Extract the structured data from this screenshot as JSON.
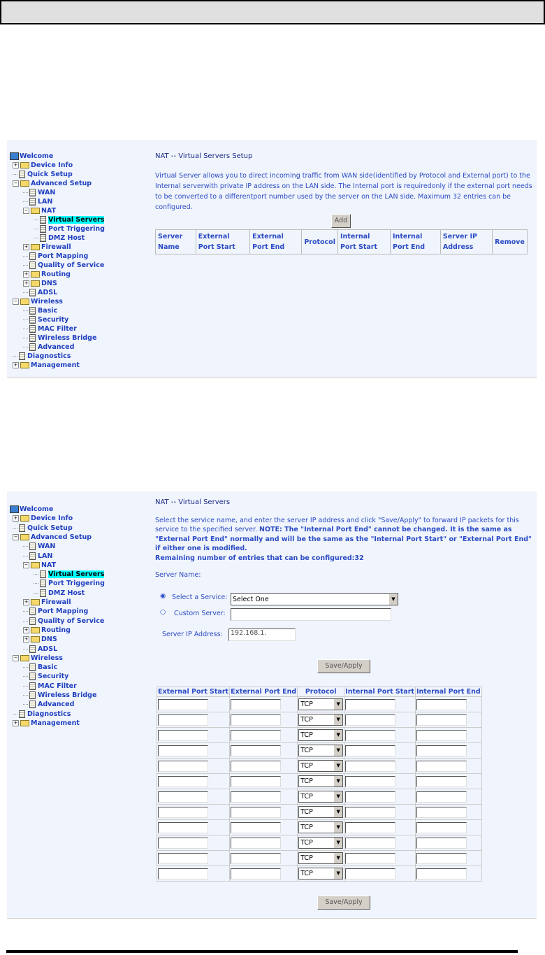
{
  "tree": [
    {
      "label": "Welcome",
      "level": 0,
      "icon": "computer",
      "exp": ""
    },
    {
      "label": "Device Info",
      "level": 1,
      "icon": "folder",
      "exp": "+"
    },
    {
      "label": "Quick Setup",
      "level": 1,
      "icon": "page",
      "exp": ""
    },
    {
      "label": "Advanced Setup",
      "level": 1,
      "icon": "folder-open",
      "exp": "-"
    },
    {
      "label": "WAN",
      "level": 2,
      "icon": "page",
      "exp": ""
    },
    {
      "label": "LAN",
      "level": 2,
      "icon": "page",
      "exp": ""
    },
    {
      "label": "NAT",
      "level": 2,
      "icon": "folder-open",
      "exp": "-"
    },
    {
      "label": "Virtual Servers",
      "level": 3,
      "icon": "page",
      "exp": "",
      "selected": true
    },
    {
      "label": "Port Triggering",
      "level": 3,
      "icon": "page",
      "exp": ""
    },
    {
      "label": "DMZ Host",
      "level": 3,
      "icon": "page",
      "exp": ""
    },
    {
      "label": "Firewall",
      "level": 2,
      "icon": "folder",
      "exp": "+"
    },
    {
      "label": "Port Mapping",
      "level": 2,
      "icon": "page",
      "exp": ""
    },
    {
      "label": "Quality of Service",
      "level": 2,
      "icon": "page",
      "exp": ""
    },
    {
      "label": "Routing",
      "level": 2,
      "icon": "folder",
      "exp": "+"
    },
    {
      "label": "DNS",
      "level": 2,
      "icon": "folder",
      "exp": "+"
    },
    {
      "label": "ADSL",
      "level": 2,
      "icon": "page",
      "exp": ""
    },
    {
      "label": "Wireless",
      "level": 1,
      "icon": "folder-open",
      "exp": "-"
    },
    {
      "label": "Basic",
      "level": 2,
      "icon": "page",
      "exp": ""
    },
    {
      "label": "Security",
      "level": 2,
      "icon": "page",
      "exp": ""
    },
    {
      "label": "MAC Filter",
      "level": 2,
      "icon": "page",
      "exp": ""
    },
    {
      "label": "Wireless Bridge",
      "level": 2,
      "icon": "page",
      "exp": ""
    },
    {
      "label": "Advanced",
      "level": 2,
      "icon": "page",
      "exp": ""
    },
    {
      "label": "Diagnostics",
      "level": 1,
      "icon": "page",
      "exp": ""
    },
    {
      "label": "Management",
      "level": 1,
      "icon": "folder",
      "exp": "+"
    }
  ],
  "setup": {
    "title": "NAT -- Virtual Servers Setup",
    "desc": "Virtual Server allows you to direct incoming traffic from WAN side(identified by Protocol and External port) to the Internal serverwith private IP address on the LAN side. The Internal port is requiredonly if the external port needs to be converted to a differentport number used by the server on the LAN side. Maximum 32 entries can be configured.",
    "add": "Add",
    "columns": [
      "Server Name",
      "External Port Start",
      "External Port End",
      "Protocol",
      "Internal Port Start",
      "Internal Port End",
      "Server IP Address",
      "Remove"
    ]
  },
  "vs": {
    "title": "NAT -- Virtual Servers",
    "desc": "Select the service name, and enter the server IP address and click \"Save/Apply\" to forward IP packets for this service to the specified server.",
    "note": "NOTE: The \"Internal Port End\" cannot be changed. It is the same as \"External Port End\" normally and will be the same as the \"Internal Port Start\" or \"External Port End\" if either one is modified.",
    "remaining": "Remaining number of entries that can be configured:32",
    "server_name_label": "Server Name:",
    "select_service_label": "Select a Service:",
    "select_service_value": "Select One",
    "custom_server_label": "Custom Server:",
    "custom_server_value": "",
    "ip_label": "Server IP Address:",
    "ip_value": "192.168.1.",
    "save": "Save/Apply",
    "columns": [
      "External Port Start",
      "External Port End",
      "Protocol",
      "Internal Port Start",
      "Internal Port End"
    ],
    "protocol_default": "TCP",
    "row_count": 12
  }
}
